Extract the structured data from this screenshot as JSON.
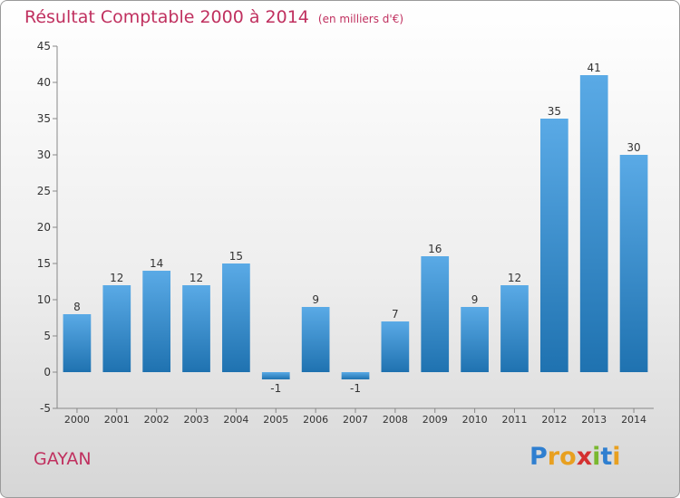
{
  "title": "Résultat Comptable 2000 à 2014",
  "unit_note": "(en milliers d'€)",
  "commune": "GAYAN",
  "logo": {
    "letters": [
      "P",
      "r",
      "o",
      "x",
      "i",
      "t",
      "i"
    ],
    "colors": [
      "#2f7fd0",
      "#e8a020",
      "#e8a020",
      "#d43030",
      "#7ab830",
      "#2f7fd0",
      "#e8a020"
    ]
  },
  "colors": {
    "bar_top": "#5aaae6",
    "bar_bottom": "#1f72b0",
    "title": "#c0305f"
  },
  "chart_data": {
    "type": "bar",
    "categories": [
      "2000",
      "2001",
      "2002",
      "2003",
      "2004",
      "2005",
      "2006",
      "2007",
      "2008",
      "2009",
      "2010",
      "2011",
      "2012",
      "2013",
      "2014"
    ],
    "values": [
      8,
      12,
      14,
      12,
      15,
      -1,
      9,
      -1,
      7,
      16,
      9,
      12,
      35,
      41,
      30
    ],
    "data_labels": [
      "8",
      "12",
      "14",
      "12",
      "15",
      "-1",
      "9",
      "-1",
      "7",
      "16",
      "9",
      "12",
      "35",
      "41",
      "30"
    ],
    "ylim": [
      -5,
      45
    ],
    "yticks": [
      -5,
      0,
      5,
      10,
      15,
      20,
      25,
      30,
      35,
      40,
      45
    ],
    "grid": false,
    "legend": "none"
  }
}
